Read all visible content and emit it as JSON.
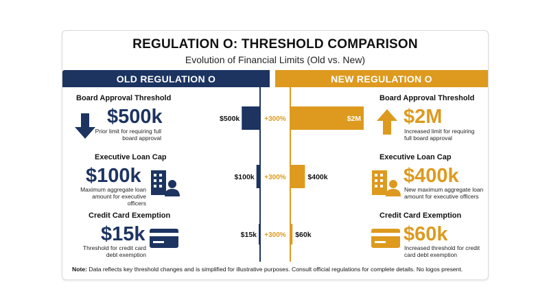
{
  "header": {
    "title": "REGULATION O: THRESHOLD COMPARISON",
    "subtitle": "Evolution of Financial Limits (Old vs. New)"
  },
  "bands": {
    "old": "OLD REGULATION O",
    "new": "NEW REGULATION O"
  },
  "colors": {
    "old": "#1d3461",
    "new": "#dd9a1f",
    "change": "#dd9a1f"
  },
  "sections": [
    {
      "title": "Board Approval Threshold",
      "old_value": "$500k",
      "old_desc": "Prior limit for requiring full board approval",
      "new_value": "$2M",
      "new_desc": "Increased limit for requiring full board approval",
      "old_icon": "arrow-down-icon",
      "new_icon": "arrow-up-icon"
    },
    {
      "title": "Executive Loan Cap",
      "old_value": "$100k",
      "old_desc": "Maximum aggregate loan amount for executive officers",
      "new_value": "$400k",
      "new_desc": "New maximum aggregate loan amount for executive officers",
      "old_icon": "building-executive-icon",
      "new_icon": "building-executive-icon"
    },
    {
      "title": "Credit Card Exemption",
      "old_value": "$15k",
      "old_desc": "Threshold for credit card debt exemption",
      "new_value": "$60k",
      "new_desc": "Increased threshold for credit card debt exemption",
      "old_icon": "credit-card-icon",
      "new_icon": "credit-card-icon"
    }
  ],
  "chart_data": {
    "type": "bar",
    "orientation": "horizontal-diverging",
    "categories": [
      "Board Approval Threshold",
      "Executive Loan Cap",
      "Credit Card Exemption"
    ],
    "series": [
      {
        "name": "OLD REGULATION O",
        "values": [
          500000,
          100000,
          15000
        ],
        "labels": [
          "$500k",
          "$100k",
          "$15k"
        ]
      },
      {
        "name": "NEW REGULATION O",
        "values": [
          2000000,
          400000,
          60000
        ],
        "labels": [
          "$2M",
          "$400k",
          "$60k"
        ]
      }
    ],
    "change_labels": [
      "+300%",
      "+300%",
      "+300%"
    ]
  },
  "note": {
    "label": "Note:",
    "text": " Data reflects key threshold changes and is simplified for illustrative purposes. Consult official regulations for complete details. No logos present."
  }
}
